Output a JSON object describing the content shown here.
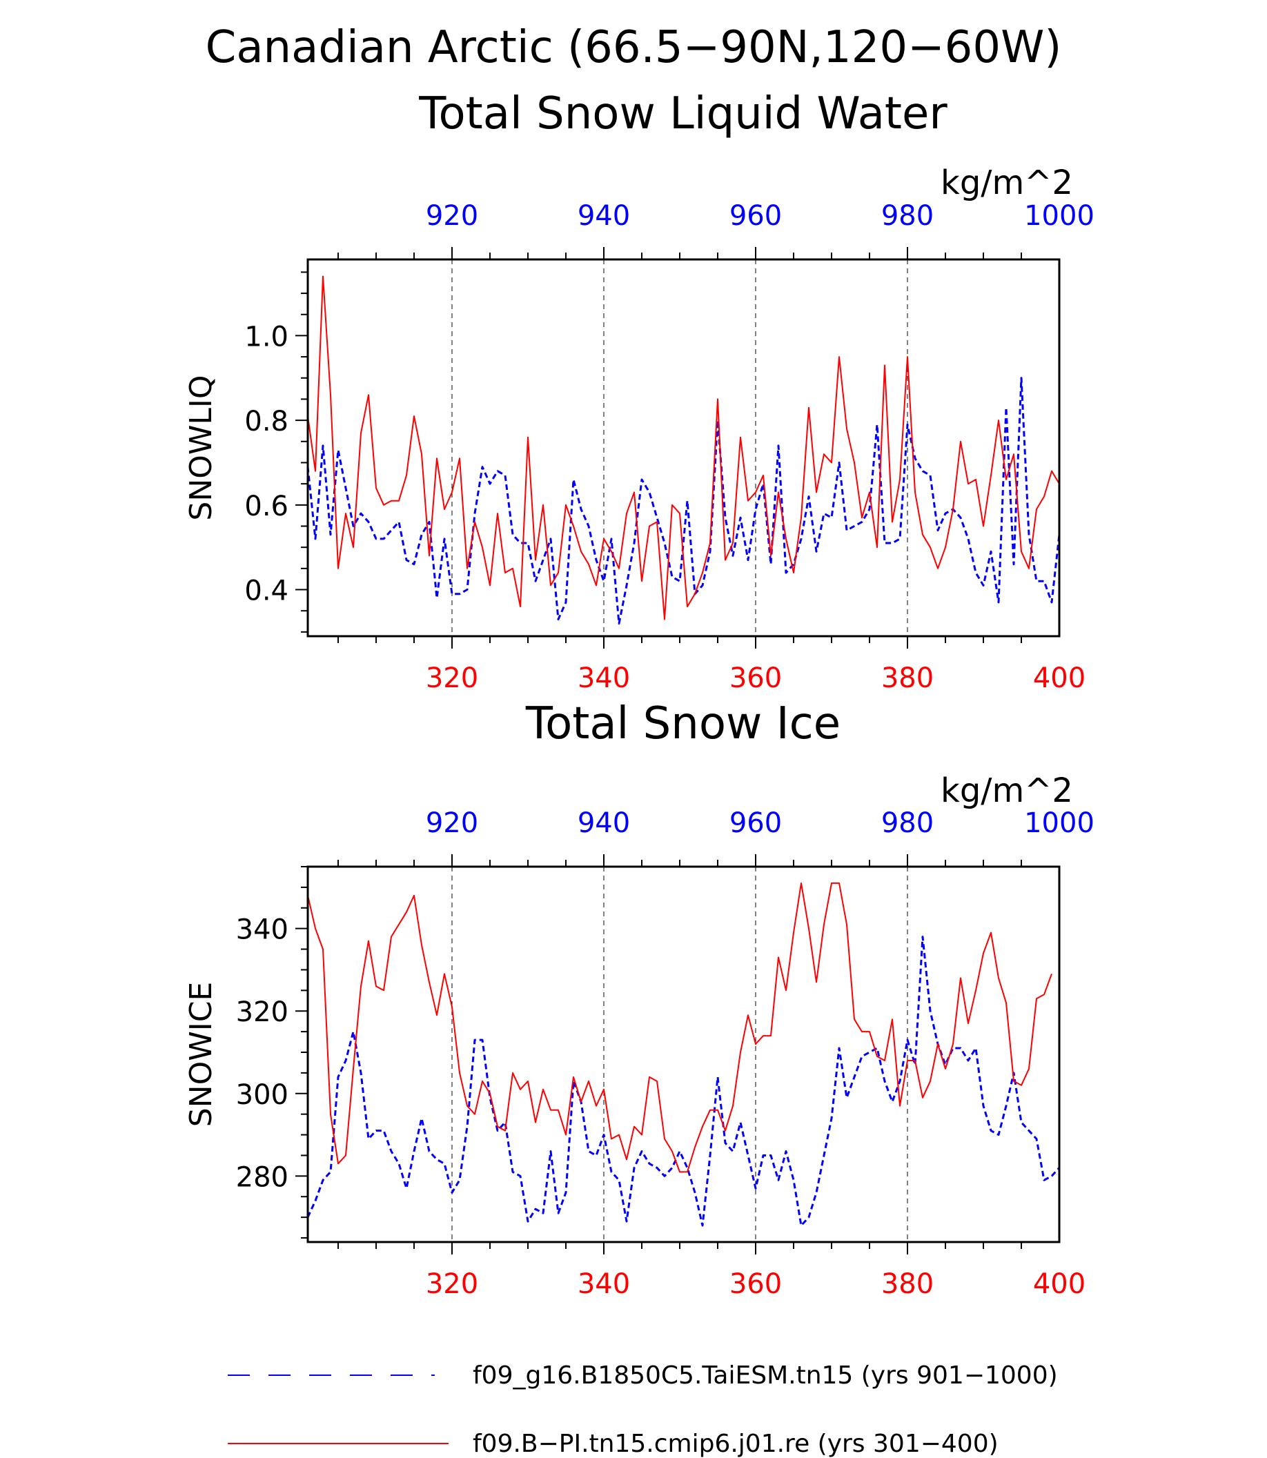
{
  "figure": {
    "title_line1": "Canadian Arctic (66.5−90N,120−60W)",
    "units_label": "kg/m^2"
  },
  "colors": {
    "series_a": "#0000ff",
    "series_b": "#ff0000",
    "axis": "#000000"
  },
  "legend": {
    "entries": [
      {
        "label": "f09_g16.B1850C5.TaiESM.tn15 (yrs 901−1000)",
        "color": "#0000ff",
        "style": "dashed"
      },
      {
        "label": "f09.B−PI.tn15.cmip6.j01.re (yrs 301−400)",
        "color": "#ff0000",
        "style": "solid"
      }
    ]
  },
  "chart_data": [
    {
      "type": "line",
      "title": "Total Snow Liquid Water",
      "units": "kg/m^2",
      "ylabel": "SNOWLIQ",
      "ylim": [
        0.29,
        1.18
      ],
      "yticks": [
        0.4,
        0.6,
        0.8,
        1.0
      ],
      "yticklabels": [
        "0.4",
        "0.6",
        "0.8",
        "1.0"
      ],
      "yminor_step": 0.05,
      "bottom_axis": {
        "lim": [
          301,
          400
        ],
        "ticks": [
          320,
          340,
          360,
          380,
          400
        ],
        "color": "#ff0000"
      },
      "top_axis": {
        "lim": [
          901,
          1000
        ],
        "ticks": [
          920,
          940,
          960,
          980,
          1000
        ],
        "color": "#0000ff"
      },
      "gridlines_x": [
        320,
        340,
        360,
        380
      ],
      "series": [
        {
          "axis": "top",
          "color": "#0000ff",
          "style": "dashed",
          "x_start": 901,
          "values": [
            0.69,
            0.52,
            0.74,
            0.53,
            0.73,
            0.64,
            0.55,
            0.58,
            0.56,
            0.52,
            0.52,
            0.54,
            0.56,
            0.47,
            0.46,
            0.53,
            0.56,
            0.38,
            0.52,
            0.39,
            0.39,
            0.4,
            0.58,
            0.69,
            0.65,
            0.68,
            0.67,
            0.53,
            0.51,
            0.51,
            0.42,
            0.47,
            0.52,
            0.33,
            0.37,
            0.66,
            0.59,
            0.55,
            0.47,
            0.42,
            0.52,
            0.32,
            0.41,
            0.51,
            0.66,
            0.63,
            0.57,
            0.51,
            0.43,
            0.42,
            0.61,
            0.39,
            0.41,
            0.49,
            0.8,
            0.57,
            0.48,
            0.57,
            0.47,
            0.59,
            0.65,
            0.46,
            0.74,
            0.44,
            0.46,
            0.52,
            0.62,
            0.49,
            0.58,
            0.57,
            0.7,
            0.54,
            0.55,
            0.56,
            0.59,
            0.79,
            0.51,
            0.51,
            0.52,
            0.79,
            0.71,
            0.68,
            0.67,
            0.54,
            0.58,
            0.59,
            0.57,
            0.52,
            0.44,
            0.41,
            0.49,
            0.37,
            0.83,
            0.46,
            0.9,
            0.53,
            0.42,
            0.42,
            0.37,
            0.53
          ]
        },
        {
          "axis": "bottom",
          "color": "#ff0000",
          "style": "solid",
          "x_start": 301,
          "values": [
            0.81,
            0.68,
            1.14,
            0.86,
            0.45,
            0.58,
            0.5,
            0.77,
            0.86,
            0.64,
            0.6,
            0.61,
            0.61,
            0.67,
            0.81,
            0.72,
            0.48,
            0.71,
            0.59,
            0.63,
            0.71,
            0.45,
            0.56,
            0.5,
            0.41,
            0.58,
            0.44,
            0.45,
            0.36,
            0.76,
            0.47,
            0.6,
            0.41,
            0.44,
            0.6,
            0.55,
            0.49,
            0.46,
            0.41,
            0.52,
            0.49,
            0.45,
            0.58,
            0.63,
            0.42,
            0.55,
            0.56,
            0.33,
            0.6,
            0.58,
            0.36,
            0.39,
            0.44,
            0.51,
            0.85,
            0.47,
            0.51,
            0.76,
            0.61,
            0.63,
            0.67,
            0.48,
            0.63,
            0.52,
            0.44,
            0.57,
            0.83,
            0.63,
            0.72,
            0.7,
            0.95,
            0.78,
            0.7,
            0.57,
            0.63,
            0.5,
            0.93,
            0.56,
            0.66,
            0.95,
            0.63,
            0.53,
            0.5,
            0.45,
            0.5,
            0.59,
            0.75,
            0.65,
            0.66,
            0.55,
            0.67,
            0.8,
            0.66,
            0.72,
            0.49,
            0.45,
            0.59,
            0.62,
            0.68,
            0.65
          ]
        }
      ]
    },
    {
      "type": "line",
      "title": "Total Snow Ice",
      "units": "kg/m^2",
      "ylabel": "SNOWICE",
      "ylim": [
        264,
        355
      ],
      "yticks": [
        280,
        300,
        320,
        340
      ],
      "yticklabels": [
        "280",
        "300",
        "320",
        "340"
      ],
      "yminor_step": 5,
      "bottom_axis": {
        "lim": [
          301,
          400
        ],
        "ticks": [
          320,
          340,
          360,
          380,
          400
        ],
        "color": "#ff0000"
      },
      "top_axis": {
        "lim": [
          901,
          1000
        ],
        "ticks": [
          920,
          940,
          960,
          980,
          1000
        ],
        "color": "#0000ff"
      },
      "gridlines_x": [
        320,
        340,
        360,
        380
      ],
      "series": [
        {
          "axis": "top",
          "color": "#0000ff",
          "style": "dashed",
          "x_start": 901,
          "values": [
            270,
            274,
            279,
            281,
            304,
            308,
            315,
            305,
            289,
            291,
            291,
            286,
            283,
            277,
            286,
            294,
            286,
            284,
            283,
            276,
            279,
            292,
            313,
            313,
            299,
            291,
            293,
            281,
            280,
            269,
            272,
            271,
            286,
            271,
            276,
            303,
            298,
            286,
            285,
            290,
            281,
            279,
            269,
            282,
            286,
            283,
            282,
            280,
            282,
            286,
            282,
            276,
            268,
            285,
            304,
            288,
            286,
            293,
            285,
            277,
            285,
            285,
            279,
            286,
            279,
            268,
            270,
            276,
            285,
            294,
            311,
            299,
            304,
            309,
            310,
            311,
            303,
            298,
            303,
            313,
            307,
            338,
            320,
            312,
            307,
            311,
            311,
            308,
            311,
            297,
            291,
            290,
            297,
            305,
            293,
            291,
            289,
            279,
            280,
            282
          ]
        },
        {
          "axis": "bottom",
          "color": "#ff0000",
          "style": "solid",
          "x_start": 301,
          "values": [
            348,
            340,
            335,
            295,
            283,
            285,
            306,
            326,
            337,
            326,
            325,
            338,
            341,
            344,
            348,
            336,
            327,
            319,
            329,
            321,
            305,
            297,
            295,
            303,
            300,
            292,
            291,
            305,
            301,
            303,
            293,
            301,
            296,
            296,
            290,
            304,
            298,
            303,
            297,
            301,
            289,
            290,
            284,
            292,
            290,
            304,
            303,
            289,
            286,
            281,
            281,
            287,
            292,
            296,
            296,
            291,
            297,
            310,
            319,
            312,
            314,
            314,
            333,
            325,
            339,
            351,
            340,
            327,
            341,
            351,
            351,
            341,
            318,
            315,
            315,
            309,
            308,
            318,
            297,
            308,
            308,
            299,
            303,
            312,
            306,
            312,
            328,
            317,
            325,
            334,
            339,
            328,
            322,
            303,
            302,
            306,
            323,
            324,
            329
          ]
        }
      ]
    }
  ]
}
